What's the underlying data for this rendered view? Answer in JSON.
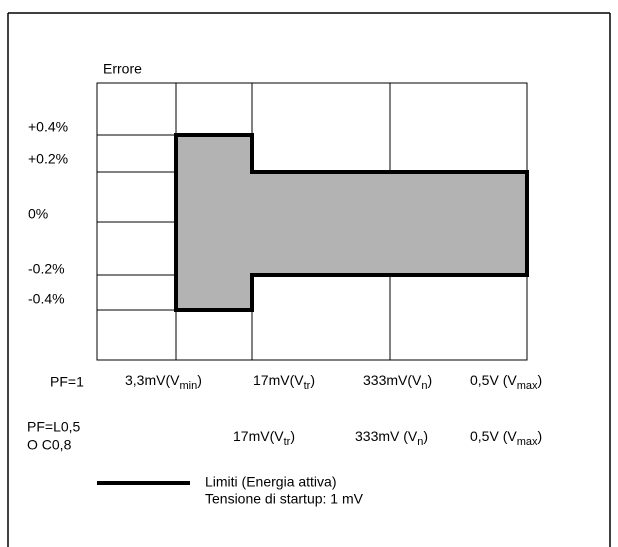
{
  "y_label": "Errore",
  "y_ticks": [
    "+0.4%",
    "+0.2%",
    "0%",
    "-0.2%",
    "-0.4%"
  ],
  "rows": [
    {
      "label": "PF=1",
      "cells": [
        {
          "pre": "3,3mV(V",
          "sub": "min",
          "post": ")"
        },
        {
          "pre": "17mV(V",
          "sub": "tr",
          "post": ")"
        },
        {
          "pre": "333mV(V",
          "sub": "n",
          "post": ")"
        },
        {
          "pre": "0,5V (V",
          "sub": "max",
          "post": ")"
        }
      ]
    },
    {
      "label_lines": [
        "PF=L0,5",
        "O C0,8"
      ],
      "cells": [
        {
          "pre": "17mV(V",
          "sub": "tr",
          "post": ")"
        },
        {
          "pre": "333mV (V",
          "sub": "n",
          "post": ")"
        },
        {
          "pre": "0,5V (V",
          "sub": "max",
          "post": ")"
        }
      ]
    }
  ],
  "legend": {
    "lines": [
      "Limiti (Energia attiva)",
      "Tensione di startup: 1 mV"
    ]
  }
}
